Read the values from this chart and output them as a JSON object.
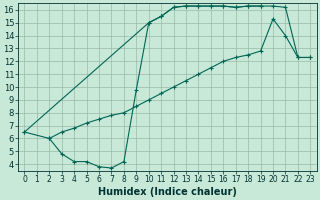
{
  "line1_x": [
    0,
    10,
    11,
    12,
    13,
    14,
    15,
    16,
    17,
    18,
    19,
    20,
    21,
    22,
    23
  ],
  "line1_y": [
    6.5,
    15.0,
    15.5,
    16.2,
    16.3,
    16.3,
    16.3,
    16.3,
    16.2,
    16.3,
    16.3,
    16.3,
    16.2,
    12.3,
    12.3
  ],
  "line2_x": [
    0,
    2,
    3,
    4,
    5,
    6,
    7,
    8,
    9,
    10,
    11,
    12,
    13,
    14,
    15,
    16,
    17,
    18,
    19
  ],
  "line2_y": [
    6.5,
    6.0,
    4.8,
    4.2,
    4.2,
    3.8,
    3.7,
    4.2,
    9.8,
    15.0,
    15.5,
    16.2,
    16.3,
    16.3,
    16.3,
    16.3,
    16.2,
    16.3,
    16.3
  ],
  "line3_x": [
    2,
    3,
    4,
    5,
    6,
    7,
    8,
    9,
    10,
    11,
    12,
    13,
    14,
    15,
    16,
    17,
    18,
    19,
    20,
    21,
    22,
    23
  ],
  "line3_y": [
    6.0,
    6.5,
    6.8,
    7.2,
    7.5,
    7.8,
    8.0,
    8.5,
    9.0,
    9.5,
    10.0,
    10.5,
    11.0,
    11.5,
    12.0,
    12.3,
    12.5,
    12.8,
    15.3,
    14.0,
    12.3,
    12.3
  ],
  "bg_color": "#c8e8d8",
  "grid_color": "#99bbaa",
  "line_color": "#006655",
  "xlabel": "Humidex (Indice chaleur)",
  "xlim": [
    -0.5,
    23.5
  ],
  "ylim": [
    3.5,
    16.5
  ],
  "xticks": [
    0,
    1,
    2,
    3,
    4,
    5,
    6,
    7,
    8,
    9,
    10,
    11,
    12,
    13,
    14,
    15,
    16,
    17,
    18,
    19,
    20,
    21,
    22,
    23
  ],
  "yticks": [
    4,
    5,
    6,
    7,
    8,
    9,
    10,
    11,
    12,
    13,
    14,
    15,
    16
  ],
  "xlabel_fontsize": 7,
  "tick_fontsize": 6
}
